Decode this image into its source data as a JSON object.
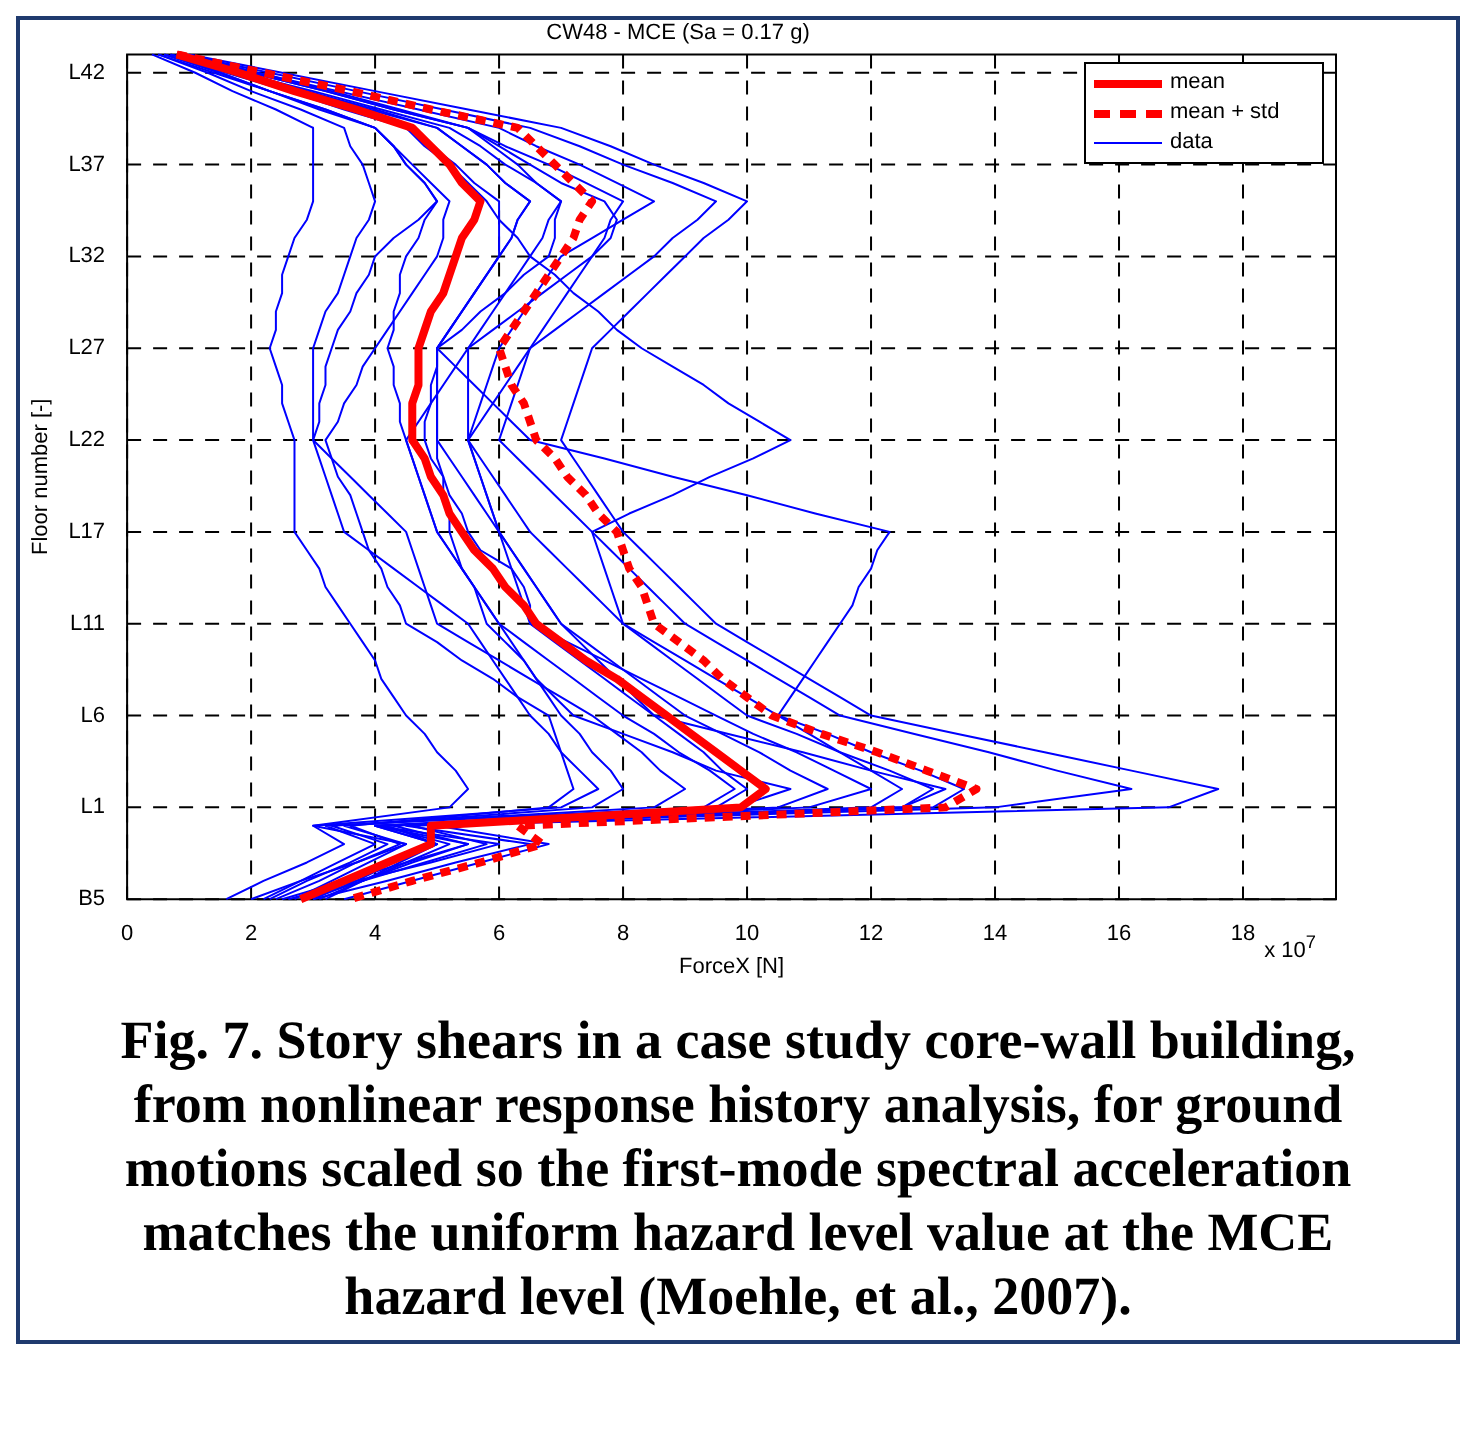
{
  "chart_data": {
    "type": "line",
    "orientation": "horizontal",
    "title": "CW48 - MCE (Sa = 0.17 g)",
    "xlabel": "ForceX [N]",
    "ylabel": "Floor number [-]",
    "annotations": [
      "x 10$^{7}$",
      "Fig. 7. Story shears in a case study core-wall building, from nonlinear response history analysis, for ground motions scaled so the first-mode spectral acceleration matches the uniform hazard level value at the MCE hazard level (Moehle, et al., 2007)."
    ],
    "xlim": [
      0,
      19.5
    ],
    "xticks": [
      0,
      2,
      4,
      6,
      8,
      10,
      12,
      14,
      16,
      18
    ],
    "categories": [
      null,
      "L42",
      null,
      null,
      null,
      null,
      "L37",
      null,
      null,
      null,
      null,
      "L32",
      null,
      null,
      null,
      null,
      "L27",
      null,
      null,
      null,
      null,
      "L22",
      null,
      null,
      null,
      null,
      "L17",
      null,
      null,
      null,
      null,
      "L11",
      null,
      null,
      null,
      null,
      "L6",
      null,
      null,
      null,
      null,
      "L1",
      null,
      null,
      null,
      null,
      "B5"
    ],
    "grid": true,
    "legend": "top right",
    "marker": "none",
    "series": [
      {
        "name": "mean",
        "color": "#ff0000",
        "line_style": "solid",
        "values": [
          0.8,
          1.8,
          2.7,
          3.7,
          4.6,
          4.9,
          5.2,
          5.4,
          5.7,
          5.6,
          5.4,
          5.3,
          5.2,
          5.1,
          4.9,
          4.8,
          4.7,
          4.7,
          4.7,
          4.6,
          4.6,
          4.6,
          4.8,
          4.9,
          5.1,
          5.2,
          5.4,
          5.6,
          5.9,
          6.1,
          6.4,
          6.6,
          7.0,
          7.4,
          7.9,
          8.3,
          8.7,
          9.1,
          9.5,
          9.9,
          10.3,
          9.9,
          4.9,
          4.9,
          4.2,
          3.5,
          2.8
        ]
      },
      {
        "name": "mean + std",
        "color": "#ff0000",
        "line_style": "dashed",
        "values": [
          0.8,
          2.2,
          3.6,
          4.9,
          6.3,
          6.6,
          6.9,
          7.2,
          7.5,
          7.3,
          7.2,
          7.0,
          6.8,
          6.6,
          6.4,
          6.2,
          6.0,
          6.1,
          6.2,
          6.4,
          6.5,
          6.6,
          6.9,
          7.1,
          7.4,
          7.6,
          7.9,
          8.0,
          8.1,
          8.3,
          8.4,
          8.5,
          8.9,
          9.3,
          9.6,
          10.0,
          10.4,
          11.2,
          12.1,
          12.9,
          13.7,
          13.2,
          6.3,
          6.7,
          5.7,
          4.6,
          3.6
        ]
      },
      {
        "name": "data",
        "color": "#0000ff",
        "line_style": "solid",
        "values": [
          1.0,
          2.5,
          4.0,
          5.5,
          7.0,
          7.8,
          8.5,
          9.3,
          10,
          9.7,
          9.3,
          9,
          8.7,
          8.4,
          8.1,
          7.8,
          7.5,
          7.4,
          7.3,
          7.2,
          7.1,
          7,
          7.2,
          7.4,
          7.6,
          7.8,
          8,
          8.3,
          8.6,
          8.9,
          9.2,
          9.5,
          10,
          10.5,
          11,
          11.5,
          12,
          13.4,
          14.8,
          16.2,
          17.6,
          16.8,
          4.5,
          6.5,
          5.3,
          4.2,
          3.0
        ]
      },
      {
        "color": "#0000ff",
        "line_style": "solid",
        "values": [
          0.9,
          2.3,
          3.7,
          5.1,
          6.5,
          7.3,
          8,
          8.8,
          9.5,
          9.2,
          8.8,
          8.5,
          8.1,
          7.7,
          7.3,
          6.9,
          6.5,
          6.4,
          6.3,
          6.2,
          6.1,
          6,
          6.3,
          6.6,
          6.9,
          7.2,
          7.5,
          7.8,
          8.1,
          8.4,
          8.7,
          9,
          9.5,
          10,
          10.5,
          11,
          11.5,
          12.7,
          13.9,
          15,
          16.2,
          14,
          4,
          6,
          4.9,
          3.7,
          2.6
        ]
      },
      {
        "color": "#0000ff",
        "line_style": "solid",
        "values": [
          0.8,
          2,
          3.2,
          4.3,
          5.5,
          6.1,
          6.8,
          7.4,
          8,
          7.8,
          7.7,
          7.5,
          7.1,
          6.7,
          6.3,
          5.9,
          5.5,
          5.5,
          5.5,
          5.5,
          5.5,
          5.5,
          5.7,
          5.9,
          6.1,
          6.3,
          6.5,
          6.8,
          7.1,
          7.4,
          7.7,
          8,
          8.5,
          9,
          9.5,
          10,
          10.5,
          11.3,
          12,
          12.8,
          13.5,
          13,
          4,
          5.5,
          4.5,
          3.5,
          2.5
        ]
      },
      {
        "color": "#0000ff",
        "line_style": "solid",
        "values": [
          0.7,
          1.8,
          2.9,
          3.9,
          5,
          5.4,
          5.8,
          6.1,
          6.5,
          6.3,
          6.2,
          6,
          5.8,
          5.6,
          5.4,
          5.2,
          5,
          5,
          5,
          5,
          5,
          5,
          5.2,
          5.4,
          5.6,
          5.8,
          6,
          6.2,
          6.4,
          6.6,
          6.8,
          7,
          7.4,
          7.8,
          8.2,
          8.6,
          9,
          9.6,
          10.2,
          10.7,
          11.3,
          10.5,
          4.2,
          5,
          4.4,
          3.8,
          3.2
        ]
      },
      {
        "color": "#0000ff",
        "line_style": "solid",
        "values": [
          0.7,
          1.7,
          2.6,
          3.6,
          4.5,
          4.9,
          5.3,
          5.6,
          6,
          6,
          6,
          6,
          5.8,
          5.6,
          5.4,
          5.2,
          5,
          5,
          4.9,
          4.9,
          4.8,
          4.8,
          4.9,
          5.1,
          5.2,
          5.4,
          5.5,
          5.7,
          6.2,
          6.4,
          6.5,
          6.5,
          6.9,
          7.3,
          7.7,
          8.1,
          8.5,
          8.9,
          9.3,
          9.6,
          10,
          9.5,
          4,
          5,
          4.3,
          3.5,
          2.8
        ]
      },
      {
        "color": "#0000ff",
        "line_style": "solid",
        "values": [
          0.6,
          1.6,
          2.6,
          3.5,
          4.5,
          4.8,
          5.2,
          5.5,
          5.8,
          6,
          6.3,
          6.5,
          6.3,
          6.1,
          5.9,
          5.7,
          5.5,
          5.3,
          5.1,
          4.9,
          4.7,
          4.5,
          4.6,
          4.7,
          4.8,
          4.9,
          5,
          5.2,
          5.4,
          5.6,
          5.8,
          6,
          6.4,
          6.8,
          7.2,
          7.6,
          8,
          8.5,
          8.9,
          9.4,
          9.8,
          9.3,
          3.2,
          4,
          3.4,
          2.8,
          2.2
        ]
      },
      {
        "color": "#0000ff",
        "line_style": "solid",
        "values": [
          0.6,
          1.5,
          2.3,
          3.2,
          4,
          4.3,
          4.5,
          4.8,
          5,
          4.8,
          4.7,
          4.5,
          4.4,
          4.4,
          4.3,
          4.3,
          4.2,
          4.3,
          4.3,
          4.4,
          4.4,
          4.5,
          4.6,
          4.7,
          4.8,
          4.9,
          5,
          5.2,
          5.4,
          5.6,
          5.8,
          6,
          6.2,
          6.4,
          6.6,
          6.8,
          7,
          7.3,
          7.5,
          7.8,
          8,
          7.5,
          3.5,
          4.5,
          3.7,
          2.8,
          2
        ]
      },
      {
        "color": "#0000ff",
        "line_style": "solid",
        "values": [
          0.5,
          1.4,
          2.3,
          3.1,
          4,
          4.3,
          4.5,
          4.8,
          5,
          4.7,
          4.3,
          4,
          3.9,
          3.7,
          3.6,
          3.4,
          3.3,
          3.2,
          3.2,
          3.1,
          3.1,
          3,
          3.1,
          3.2,
          3.3,
          3.4,
          3.5,
          3.9,
          4.3,
          4.7,
          5.1,
          5.5,
          5.7,
          5.9,
          6.1,
          6.3,
          6.5,
          6.8,
          7,
          7.3,
          7.6,
          7,
          3,
          3.5,
          2.9,
          2.2,
          1.6
        ]
      },
      {
        "color": "#0000ff",
        "line_style": "solid",
        "values": [
          0.4,
          1.1,
          1.7,
          2.4,
          3,
          3,
          3,
          3,
          3,
          2.9,
          2.7,
          2.6,
          2.5,
          2.5,
          2.4,
          2.4,
          2.3,
          2.4,
          2.5,
          2.5,
          2.6,
          2.7,
          2.7,
          2.7,
          2.7,
          2.7,
          2.7,
          2.9,
          3.1,
          3.2,
          3.4,
          3.6,
          3.8,
          4,
          4.1,
          4.3,
          4.5,
          4.8,
          5,
          5.3,
          5.5,
          5.2,
          3,
          4.5,
          3.9,
          3.3,
          2.7
        ]
      },
      {
        "color": "#0000ff",
        "line_style": "solid",
        "values": [
          0.8,
          1.9,
          2.9,
          4,
          5,
          5.4,
          5.8,
          6.1,
          6.5,
          6.3,
          6.2,
          6,
          5.8,
          5.6,
          5.4,
          5.2,
          5,
          5.3,
          5.6,
          5.9,
          6.2,
          6.5,
          7.7,
          8.8,
          10,
          11.1,
          12.3,
          12.1,
          12,
          11.8,
          11.7,
          11.5,
          11.3,
          11.1,
          10.9,
          10.7,
          10.5,
          11,
          11.5,
          12,
          12.5,
          12,
          4,
          5,
          4.3,
          3.7,
          3
        ]
      },
      {
        "color": "#0000ff",
        "line_style": "solid",
        "values": [
          1,
          2.1,
          3.3,
          4.4,
          5.5,
          5.9,
          6.3,
          6.6,
          7,
          6.8,
          6.7,
          6.5,
          6.9,
          7.2,
          7.6,
          7.9,
          8.3,
          8.8,
          9.3,
          9.7,
          10.2,
          10.7,
          10.1,
          9.4,
          8.8,
          8.1,
          7.5,
          7.6,
          7.7,
          7.8,
          7.9,
          8,
          8.4,
          8.8,
          9.2,
          9.6,
          10,
          10.8,
          11.5,
          12.3,
          13,
          12.5,
          5,
          6.8,
          5.7,
          4.6,
          3.5
        ]
      },
      {
        "color": "#0000ff",
        "line_style": "solid",
        "values": [
          0.5,
          1.3,
          2,
          2.8,
          3.5,
          3.6,
          3.8,
          3.9,
          4,
          3.9,
          3.7,
          3.6,
          3.5,
          3.4,
          3.2,
          3.1,
          3,
          3,
          3,
          3,
          3,
          3,
          3.3,
          3.6,
          3.9,
          4.2,
          4.5,
          4.6,
          4.7,
          4.8,
          4.9,
          5,
          5.5,
          6,
          6.5,
          7,
          7.5,
          7.9,
          8.3,
          8.6,
          9,
          8.5,
          3.3,
          4.2,
          3.6,
          2.9,
          2.3
        ]
      },
      {
        "color": "#0000ff",
        "line_style": "solid",
        "values": [
          0.8,
          2,
          3.2,
          4.3,
          5.5,
          6,
          6.5,
          7,
          7.7,
          7.9,
          7.8,
          7.5,
          7.3,
          7.1,
          6.9,
          6.7,
          6.5,
          6.3,
          6.1,
          5.9,
          5.7,
          5.5,
          5.6,
          5.7,
          5.8,
          5.9,
          6,
          6.1,
          6.2,
          6.3,
          6.4,
          6.5,
          7.1,
          7.7,
          8.3,
          8.9,
          9.5,
          10.1,
          10.8,
          11.4,
          12,
          11,
          4.3,
          5.5,
          4.6,
          3.8,
          2.9
        ]
      },
      {
        "color": "#0000ff",
        "line_style": "solid",
        "values": [
          0.8,
          2.1,
          3.4,
          4.7,
          6,
          6.6,
          7.3,
          7.9,
          8.5,
          8,
          7.5,
          7,
          6.8,
          6.6,
          6.4,
          6.2,
          6,
          5.9,
          5.8,
          5.7,
          5.6,
          5.5,
          5.6,
          5.7,
          5.8,
          5.9,
          6,
          6.2,
          6.4,
          6.6,
          6.8,
          7,
          7.3,
          7.6,
          7.9,
          8.2,
          8.5,
          9.7,
          10.9,
          12,
          13.2,
          12.5,
          4.1,
          5.2,
          4.5,
          3.8,
          3.1
        ]
      },
      {
        "color": "#0000ff",
        "line_style": "solid",
        "values": [
          0.6,
          1.5,
          2.3,
          3.2,
          4,
          4.3,
          4.6,
          4.9,
          5.2,
          5.1,
          5.1,
          5,
          4.8,
          4.6,
          4.4,
          4.2,
          4,
          3.8,
          3.7,
          3.5,
          3.4,
          3.2,
          3.3,
          3.4,
          3.6,
          3.7,
          3.8,
          3.9,
          4.1,
          4.2,
          4.4,
          4.5,
          5,
          5.4,
          5.9,
          6.3,
          6.8,
          6.9,
          7,
          7.1,
          7.2,
          6.8,
          3.6,
          4.4,
          3.7,
          3.1,
          2.4
        ]
      },
      {
        "color": "#0000ff",
        "line_style": "solid",
        "values": [
          0.7,
          1.8,
          3,
          4.1,
          5.2,
          5.7,
          6.1,
          6.6,
          7,
          6.9,
          6.9,
          6.8,
          6.4,
          6.1,
          5.7,
          5.4,
          5,
          5,
          5,
          5,
          5,
          5,
          5,
          5.1,
          5.1,
          5.2,
          5.2,
          5.3,
          5.4,
          5.6,
          5.7,
          5.8,
          6.1,
          6.4,
          6.6,
          6.9,
          7.2,
          8,
          8.8,
          9.5,
          10.7,
          9.8,
          4.6,
          5.8,
          4.8,
          3.8,
          2.8
        ]
      }
    ]
  }
}
